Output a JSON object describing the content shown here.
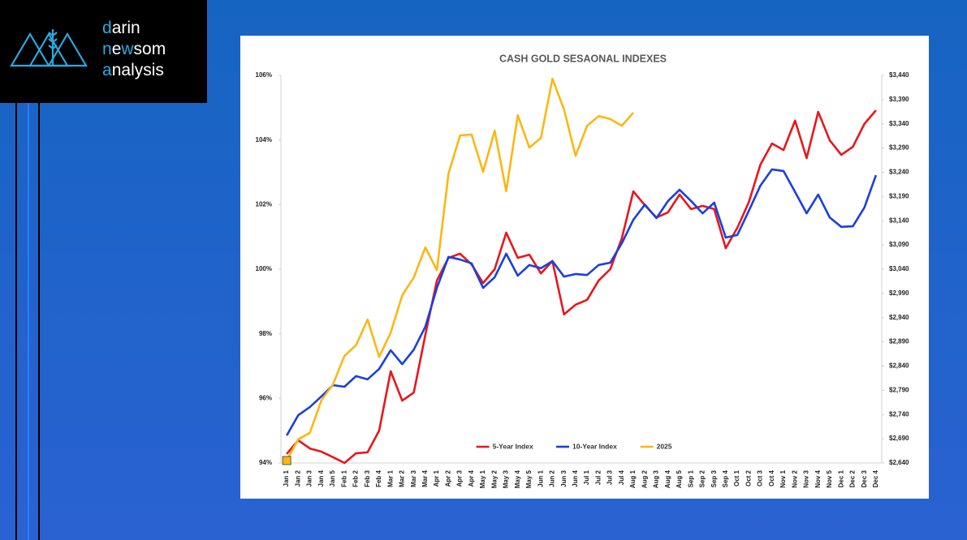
{
  "logo": {
    "lines": [
      "darin",
      "newsom",
      "analysis"
    ]
  },
  "chart_data": {
    "type": "line",
    "title": "CASH GOLD SESAONAL INDEXES",
    "categories": [
      "Jan 1",
      "Jan 2",
      "Jan 3",
      "Jan 4",
      "Jan 5",
      "Feb 1",
      "Feb 2",
      "Feb 3",
      "Feb 4",
      "Mar 1",
      "Mar 2",
      "Mar 3",
      "Mar 4",
      "Apr 1",
      "Apr 2",
      "Apr 3",
      "Apr 4",
      "May 1",
      "May 2",
      "May 3",
      "May 4",
      "May 5",
      "Jun 1",
      "Jun 2",
      "Jun 3",
      "Jun 4",
      "Jul 1",
      "Jul 2",
      "Jul 3",
      "Jul 4",
      "Aug 1",
      "Aug 2",
      "Aug 3",
      "Aug 4",
      "Aug 5",
      "Sep 1",
      "Sep 2",
      "Sep 3",
      "Sep 4",
      "Oct 1",
      "Oct 2",
      "Oct 3",
      "Oct 4",
      "Nov 1",
      "Nov 2",
      "Nov 3",
      "Nov 4",
      "Nov 5",
      "Dec 1",
      "Dec 2",
      "Dec 3",
      "Dec 4"
    ],
    "series": [
      {
        "name": "5-Year Index",
        "color": "#e8161b",
        "values": [
          94.28,
          94.7,
          94.45,
          94.35,
          94.18,
          94.0,
          94.3,
          94.33,
          95.0,
          96.84,
          95.93,
          96.18,
          97.97,
          99.65,
          100.35,
          100.48,
          100.15,
          99.57,
          100.0,
          101.13,
          100.35,
          100.45,
          99.87,
          100.25,
          98.6,
          98.9,
          99.05,
          99.65,
          100.0,
          100.95,
          102.41,
          101.98,
          101.6,
          101.76,
          102.31,
          101.86,
          101.96,
          101.86,
          100.65,
          101.28,
          102.08,
          103.24,
          103.89,
          103.69,
          104.6,
          103.44,
          104.87,
          103.99,
          103.54,
          103.79,
          104.5,
          104.92
        ]
      },
      {
        "name": "10-Year Index",
        "color": "#1a3fe0",
        "values": [
          94.85,
          95.48,
          95.73,
          96.06,
          96.41,
          96.36,
          96.69,
          96.59,
          96.91,
          97.49,
          97.06,
          97.51,
          98.22,
          99.42,
          100.38,
          100.3,
          100.18,
          99.42,
          99.75,
          100.48,
          99.8,
          100.13,
          100.03,
          100.25,
          99.77,
          99.85,
          99.82,
          100.13,
          100.2,
          100.8,
          101.53,
          102.0,
          101.58,
          102.11,
          102.46,
          102.11,
          101.73,
          102.06,
          100.98,
          101.06,
          101.81,
          102.59,
          103.09,
          103.04,
          102.39,
          101.73,
          102.31,
          101.6,
          101.31,
          101.33,
          101.91,
          102.91
        ]
      },
      {
        "name": "2025",
        "color": "#fbb714",
        "axis": "y2",
        "values": [
          2645,
          2689,
          2702,
          2769,
          2802,
          2861,
          2883,
          2936,
          2859,
          2909,
          2986,
          3023,
          3085,
          3038,
          3237,
          3316,
          3318,
          3241,
          3326,
          3201,
          3358,
          3291,
          3311,
          3433,
          3370,
          3274,
          3336,
          3356,
          3350,
          3336,
          3363,
          null,
          null,
          null,
          null,
          null,
          null,
          null,
          null,
          null,
          null,
          null,
          null,
          null,
          null,
          null,
          null,
          null,
          null,
          null,
          null,
          null
        ]
      }
    ],
    "ylim": [
      94,
      106
    ],
    "yticks": [
      {
        "value": 94,
        "label": "94%"
      },
      {
        "value": 96,
        "label": "96%"
      },
      {
        "value": 98,
        "label": "98%"
      },
      {
        "value": 100,
        "label": "100%"
      },
      {
        "value": 102,
        "label": "102%"
      },
      {
        "value": 104,
        "label": "104%"
      },
      {
        "value": 106,
        "label": "106%"
      }
    ],
    "y2lim": [
      2640,
      3440
    ],
    "y2ticks": [
      {
        "value": 2640,
        "label": "$2,640"
      },
      {
        "value": 2690,
        "label": "$2,690"
      },
      {
        "value": 2740,
        "label": "$2,740"
      },
      {
        "value": 2790,
        "label": "$2,790"
      },
      {
        "value": 2840,
        "label": "$2,840"
      },
      {
        "value": 2890,
        "label": "$2,890"
      },
      {
        "value": 2940,
        "label": "$2,940"
      },
      {
        "value": 2990,
        "label": "$2,990"
      },
      {
        "value": 3040,
        "label": "$3,040"
      },
      {
        "value": 3090,
        "label": "$3,090"
      },
      {
        "value": 3140,
        "label": "$3,140"
      },
      {
        "value": 3190,
        "label": "$3,190"
      },
      {
        "value": 3240,
        "label": "$3,240"
      },
      {
        "value": 3290,
        "label": "$3,290"
      },
      {
        "value": 3340,
        "label": "$3,340"
      },
      {
        "value": 3390,
        "label": "$3,390"
      },
      {
        "value": 3440,
        "label": "$3,440"
      }
    ],
    "grid": false,
    "legend": "bottom"
  }
}
